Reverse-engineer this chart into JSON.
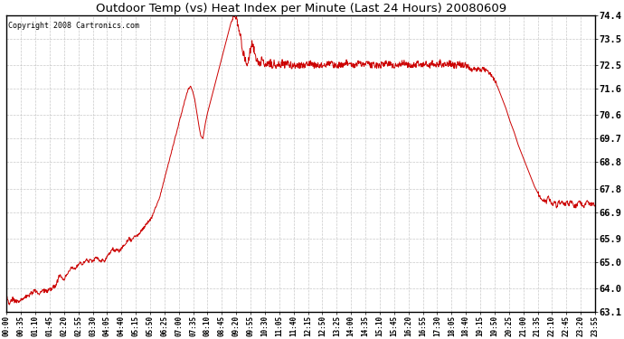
{
  "title": "Outdoor Temp (vs) Heat Index per Minute (Last 24 Hours) 20080609",
  "copyright_text": "Copyright 2008 Cartronics.com",
  "line_color": "#cc0000",
  "background_color": "#ffffff",
  "plot_background": "#ffffff",
  "grid_color": "#bbbbbb",
  "ylim": [
    63.1,
    74.4
  ],
  "yticks": [
    63.1,
    64.0,
    65.0,
    65.9,
    66.9,
    67.8,
    68.8,
    69.7,
    70.6,
    71.6,
    72.5,
    73.5,
    74.4
  ],
  "xtick_labels": [
    "00:00",
    "00:35",
    "01:10",
    "01:45",
    "02:20",
    "02:55",
    "03:30",
    "04:05",
    "04:40",
    "05:15",
    "05:50",
    "06:25",
    "07:00",
    "07:35",
    "08:10",
    "08:45",
    "09:20",
    "09:55",
    "10:30",
    "11:05",
    "11:40",
    "12:15",
    "12:50",
    "13:25",
    "14:00",
    "14:35",
    "15:10",
    "15:45",
    "16:20",
    "16:55",
    "17:30",
    "18:05",
    "18:40",
    "19:15",
    "19:50",
    "20:25",
    "21:00",
    "21:35",
    "22:10",
    "22:45",
    "23:20",
    "23:55"
  ],
  "num_points": 1440,
  "key_points": {
    "0": 63.7,
    "5": 63.4,
    "10": 63.5,
    "15": 63.6,
    "20": 63.5,
    "30": 63.5,
    "40": 63.6,
    "50": 63.7,
    "60": 63.8,
    "70": 63.9,
    "80": 63.8,
    "90": 63.9,
    "100": 63.9,
    "110": 64.0,
    "120": 64.1,
    "125": 64.3,
    "130": 64.5,
    "135": 64.4,
    "140": 64.3,
    "145": 64.5,
    "150": 64.6,
    "155": 64.7,
    "160": 64.8,
    "165": 64.7,
    "170": 64.8,
    "175": 64.9,
    "180": 65.0,
    "185": 64.9,
    "190": 65.0,
    "195": 65.1,
    "200": 65.0,
    "205": 65.1,
    "210": 65.0,
    "215": 65.1,
    "220": 65.2,
    "225": 65.1,
    "230": 65.0,
    "235": 65.1,
    "240": 65.0,
    "245": 65.2,
    "250": 65.3,
    "255": 65.4,
    "260": 65.5,
    "265": 65.4,
    "270": 65.5,
    "275": 65.4,
    "280": 65.5,
    "285": 65.6,
    "290": 65.7,
    "295": 65.8,
    "300": 65.9,
    "305": 65.8,
    "310": 65.9,
    "315": 66.0,
    "320": 66.0,
    "325": 66.1,
    "330": 66.2,
    "335": 66.3,
    "340": 66.4,
    "345": 66.5,
    "350": 66.6,
    "355": 66.7,
    "360": 66.9,
    "365": 67.1,
    "370": 67.3,
    "375": 67.5,
    "380": 67.8,
    "385": 68.1,
    "390": 68.4,
    "395": 68.7,
    "400": 69.0,
    "405": 69.3,
    "410": 69.6,
    "415": 69.9,
    "420": 70.2,
    "425": 70.5,
    "430": 70.8,
    "435": 71.1,
    "440": 71.4,
    "445": 71.6,
    "450": 71.7,
    "455": 71.5,
    "460": 71.2,
    "465": 70.7,
    "470": 70.2,
    "475": 69.8,
    "480": 69.7,
    "485": 70.2,
    "490": 70.6,
    "495": 70.9,
    "500": 71.2,
    "505": 71.5,
    "510": 71.8,
    "515": 72.1,
    "520": 72.4,
    "525": 72.7,
    "530": 73.0,
    "535": 73.3,
    "540": 73.6,
    "545": 73.9,
    "550": 74.2,
    "555": 74.4,
    "560": 74.3,
    "565": 74.1,
    "570": 73.8,
    "575": 73.3,
    "580": 72.9,
    "585": 72.6,
    "590": 72.5,
    "595": 73.0,
    "600": 73.3,
    "605": 73.1,
    "610": 72.8,
    "615": 72.5,
    "620": 72.6,
    "625": 72.7,
    "630": 72.5,
    "635": 72.6,
    "640": 72.5,
    "645": 72.6,
    "650": 72.5,
    "655": 72.6,
    "660": 72.5,
    "665": 72.6,
    "670": 72.5,
    "675": 72.6,
    "680": 72.5,
    "685": 72.6,
    "690": 72.5,
    "700": 72.5,
    "710": 72.5,
    "720": 72.5,
    "730": 72.5,
    "740": 72.6,
    "750": 72.5,
    "760": 72.5,
    "770": 72.5,
    "780": 72.5,
    "790": 72.6,
    "800": 72.5,
    "810": 72.5,
    "820": 72.5,
    "830": 72.6,
    "840": 72.5,
    "850": 72.5,
    "860": 72.6,
    "870": 72.5,
    "880": 72.6,
    "890": 72.5,
    "900": 72.5,
    "910": 72.5,
    "920": 72.5,
    "930": 72.6,
    "940": 72.5,
    "950": 72.5,
    "960": 72.5,
    "970": 72.6,
    "980": 72.5,
    "990": 72.5,
    "1000": 72.5,
    "1005": 72.6,
    "1010": 72.5,
    "1015": 72.5,
    "1020": 72.5,
    "1025": 72.6,
    "1030": 72.5,
    "1035": 72.5,
    "1040": 72.6,
    "1045": 72.5,
    "1050": 72.5,
    "1055": 72.5,
    "1060": 72.6,
    "1065": 72.5,
    "1070": 72.5,
    "1075": 72.6,
    "1080": 72.5,
    "1085": 72.6,
    "1090": 72.5,
    "1095": 72.5,
    "1100": 72.5,
    "1105": 72.6,
    "1110": 72.5,
    "1115": 72.5,
    "1120": 72.5,
    "1125": 72.5,
    "1130": 72.4,
    "1140": 72.3,
    "1145": 72.4,
    "1150": 72.3,
    "1155": 72.4,
    "1160": 72.3,
    "1165": 72.4,
    "1170": 72.3,
    "1175": 72.3,
    "1180": 72.2,
    "1190": 72.0,
    "1200": 71.7,
    "1210": 71.3,
    "1220": 70.9,
    "1230": 70.4,
    "1240": 70.0,
    "1250": 69.5,
    "1260": 69.1,
    "1270": 68.7,
    "1280": 68.3,
    "1290": 67.9,
    "1300": 67.6,
    "1310": 67.4,
    "1320": 67.3,
    "1325": 67.5,
    "1330": 67.3,
    "1335": 67.2,
    "1340": 67.3,
    "1345": 67.1,
    "1350": 67.3,
    "1355": 67.2,
    "1360": 67.3,
    "1365": 67.2,
    "1370": 67.3,
    "1375": 67.2,
    "1380": 67.3,
    "1385": 67.2,
    "1390": 67.1,
    "1395": 67.2,
    "1400": 67.3,
    "1405": 67.2,
    "1410": 67.1,
    "1415": 67.2,
    "1420": 67.3,
    "1425": 67.2,
    "1430": 67.2,
    "1435": 67.2,
    "1439": 67.2
  }
}
